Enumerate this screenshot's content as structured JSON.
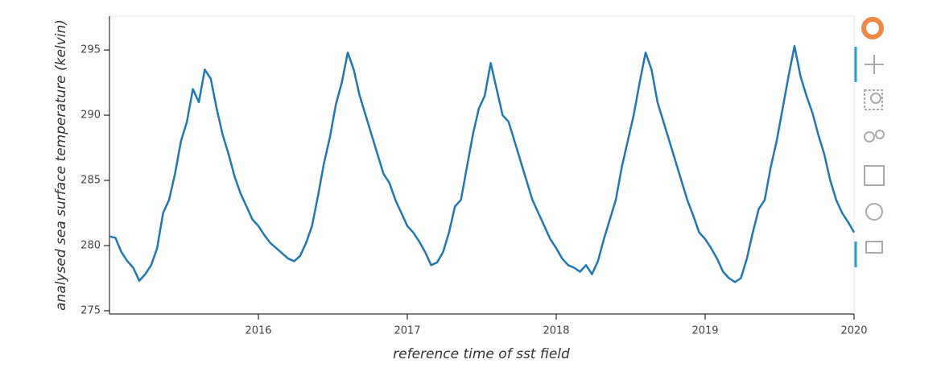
{
  "chart_data": {
    "type": "line",
    "xlabel": "reference time of sst field",
    "ylabel": "analysed sea surface temperature (kelvin)",
    "color": "#1f77b4",
    "x": [
      2015.0,
      2015.04,
      2015.08,
      2015.12,
      2015.16,
      2015.2,
      2015.24,
      2015.28,
      2015.32,
      2015.36,
      2015.4,
      2015.44,
      2015.48,
      2015.52,
      2015.56,
      2015.6,
      2015.64,
      2015.68,
      2015.72,
      2015.76,
      2015.8,
      2015.84,
      2015.88,
      2015.92,
      2015.96,
      2016.0,
      2016.04,
      2016.08,
      2016.12,
      2016.16,
      2016.2,
      2016.24,
      2016.28,
      2016.32,
      2016.36,
      2016.4,
      2016.44,
      2016.48,
      2016.52,
      2016.56,
      2016.6,
      2016.64,
      2016.68,
      2016.72,
      2016.76,
      2016.8,
      2016.84,
      2016.88,
      2016.92,
      2016.96,
      2017.0,
      2017.04,
      2017.08,
      2017.12,
      2017.16,
      2017.2,
      2017.24,
      2017.28,
      2017.32,
      2017.36,
      2017.4,
      2017.44,
      2017.48,
      2017.52,
      2017.56,
      2017.6,
      2017.64,
      2017.68,
      2017.72,
      2017.76,
      2017.8,
      2017.84,
      2017.88,
      2017.92,
      2017.96,
      2018.0,
      2018.04,
      2018.08,
      2018.12,
      2018.16,
      2018.2,
      2018.24,
      2018.28,
      2018.32,
      2018.36,
      2018.4,
      2018.44,
      2018.48,
      2018.52,
      2018.56,
      2018.6,
      2018.64,
      2018.68,
      2018.72,
      2018.76,
      2018.8,
      2018.84,
      2018.88,
      2018.92,
      2018.96,
      2019.0,
      2019.04,
      2019.08,
      2019.12,
      2019.16,
      2019.2,
      2019.24,
      2019.28,
      2019.32,
      2019.36,
      2019.4,
      2019.44,
      2019.48,
      2019.52,
      2019.56,
      2019.6,
      2019.64,
      2019.68,
      2019.72,
      2019.76,
      2019.8,
      2019.84,
      2019.88,
      2019.92,
      2019.96,
      2020.0
    ],
    "values": [
      280.7,
      280.6,
      279.5,
      278.8,
      278.3,
      277.3,
      277.8,
      278.5,
      279.8,
      282.5,
      283.5,
      285.5,
      288.0,
      289.5,
      292.0,
      291.0,
      293.5,
      292.8,
      290.5,
      288.5,
      287.0,
      285.3,
      284.0,
      283.0,
      282.0,
      281.5,
      280.8,
      280.2,
      279.8,
      279.4,
      279.0,
      278.8,
      279.2,
      280.2,
      281.5,
      283.8,
      286.3,
      288.3,
      290.8,
      292.5,
      294.8,
      293.5,
      291.5,
      290.0,
      288.5,
      287.0,
      285.5,
      284.8,
      283.5,
      282.5,
      281.5,
      281.0,
      280.3,
      279.5,
      278.5,
      278.7,
      279.5,
      281.0,
      283.0,
      283.5,
      286.0,
      288.5,
      290.5,
      291.5,
      294.0,
      292.0,
      290.0,
      289.5,
      288.0,
      286.5,
      285.0,
      283.5,
      282.5,
      281.5,
      280.5,
      279.8,
      279.0,
      278.5,
      278.3,
      278.0,
      278.5,
      277.8,
      278.8,
      280.5,
      282.0,
      283.5,
      286.0,
      288.0,
      290.0,
      292.5,
      294.8,
      293.5,
      291.0,
      289.5,
      288.0,
      286.5,
      285.0,
      283.5,
      282.3,
      281.0,
      280.5,
      279.8,
      279.0,
      278.0,
      277.5,
      277.2,
      277.5,
      279.0,
      281.0,
      282.8,
      283.5,
      286.0,
      288.0,
      290.5,
      293.0,
      295.3,
      293.0,
      291.5,
      290.2,
      288.5,
      287.0,
      285.0,
      283.5,
      282.5,
      281.8,
      281.0
    ],
    "xlim": [
      2015,
      2020
    ],
    "xticks": [
      2016,
      2017,
      2018,
      2019,
      2020
    ],
    "ylim": [
      274.75,
      297.6
    ],
    "yticks": [
      275,
      280,
      285,
      290,
      295
    ]
  }
}
